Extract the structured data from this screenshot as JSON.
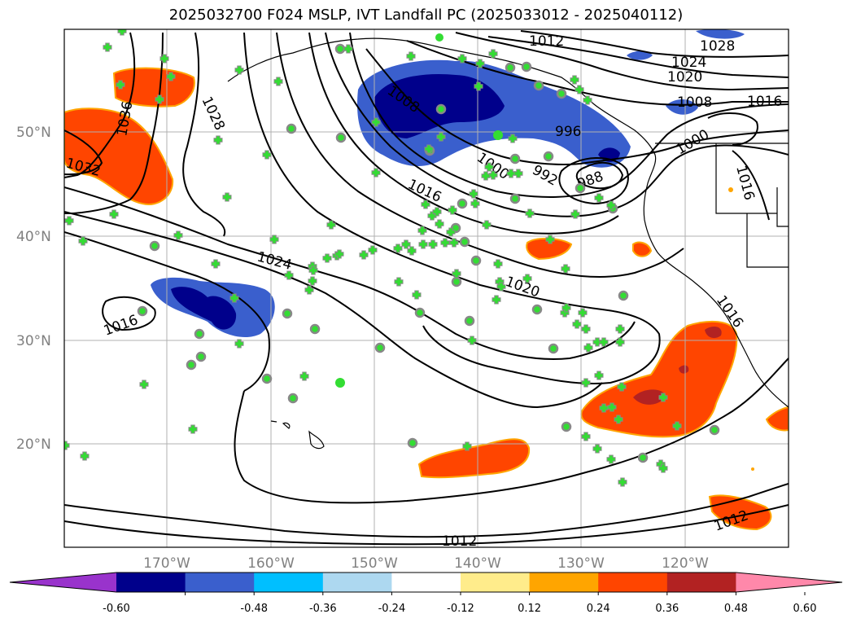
{
  "title": "2025032700 F024 MSLP, IVT Landfall PC (2025033012 - 2025040112)",
  "lat_labels": [
    {
      "id": "lat-50",
      "text": "50°N"
    },
    {
      "id": "lat-40",
      "text": "40°N"
    },
    {
      "id": "lat-30",
      "text": "30°N"
    },
    {
      "id": "lat-20",
      "text": "20°N"
    }
  ],
  "lon_labels": [
    {
      "id": "lon-170",
      "text": "170°W"
    },
    {
      "id": "lon-160",
      "text": "160°W"
    },
    {
      "id": "lon-150",
      "text": "150°W"
    },
    {
      "id": "lon-140",
      "text": "140°W"
    },
    {
      "id": "lon-130",
      "text": "130°W"
    },
    {
      "id": "lon-120",
      "text": "120°W"
    }
  ],
  "contour_labels": [
    "1012",
    "1024",
    "1020",
    "1028",
    "1016",
    "1008",
    "1008",
    "1000",
    "996",
    "992",
    "988",
    "1000",
    "1016",
    "1024",
    "1020",
    "1016",
    "1032",
    "1036",
    "1028",
    "1012",
    "1012",
    "1016",
    "1016"
  ],
  "colorbar": {
    "colors": [
      "#9933cc",
      "#00008b",
      "#3a5fcd",
      "#00bfff",
      "#add8f0",
      "#ffffff",
      "#ffec8b",
      "#ffa500",
      "#ff4500",
      "#b22222",
      "#ff88aa"
    ],
    "tick_labels": [
      "-0.60",
      "-0.48",
      "-0.36",
      "-0.24",
      "-0.12",
      "0.12",
      "0.24",
      "0.36",
      "0.48",
      "0.60"
    ]
  },
  "marker_colors": {
    "plus": "#33dd33",
    "circle_fill": "#33dd33",
    "circle_edge": "#888888"
  }
}
